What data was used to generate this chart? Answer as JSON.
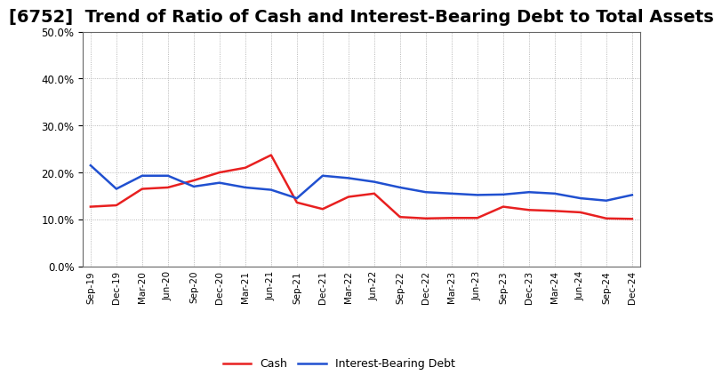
{
  "title": "[6752]  Trend of Ratio of Cash and Interest-Bearing Debt to Total Assets",
  "x_labels": [
    "Sep-19",
    "Dec-19",
    "Mar-20",
    "Jun-20",
    "Sep-20",
    "Dec-20",
    "Mar-21",
    "Jun-21",
    "Sep-21",
    "Dec-21",
    "Mar-22",
    "Jun-22",
    "Sep-22",
    "Dec-22",
    "Mar-23",
    "Jun-23",
    "Sep-23",
    "Dec-23",
    "Mar-24",
    "Jun-24",
    "Sep-24",
    "Dec-24"
  ],
  "cash": [
    0.127,
    0.13,
    0.165,
    0.168,
    0.183,
    0.2,
    0.21,
    0.237,
    0.136,
    0.122,
    0.148,
    0.155,
    0.105,
    0.102,
    0.103,
    0.103,
    0.127,
    0.12,
    0.118,
    0.115,
    0.102,
    0.101
  ],
  "interest_bearing_debt": [
    0.215,
    0.165,
    0.193,
    0.193,
    0.17,
    0.178,
    0.168,
    0.163,
    0.145,
    0.193,
    0.188,
    0.18,
    0.168,
    0.158,
    0.155,
    0.152,
    0.153,
    0.158,
    0.155,
    0.145,
    0.14,
    0.152
  ],
  "cash_color": "#e82020",
  "debt_color": "#2050d0",
  "ylim": [
    0.0,
    0.5
  ],
  "yticks": [
    0.0,
    0.1,
    0.2,
    0.3,
    0.4,
    0.5
  ],
  "background_color": "#ffffff",
  "plot_bg_color": "#ffffff",
  "grid_color": "#999999",
  "title_fontsize": 14,
  "legend_cash": "Cash",
  "legend_debt": "Interest-Bearing Debt"
}
